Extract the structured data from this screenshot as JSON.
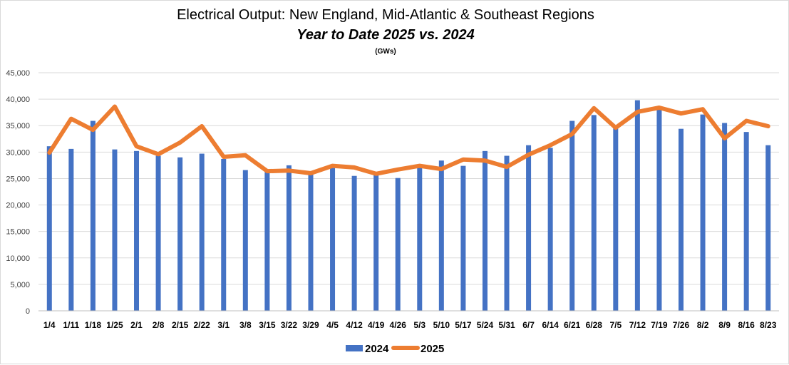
{
  "chart_data": {
    "type": "bar",
    "title": "Electrical Output:  New England, Mid-Atlantic & Southeast Regions",
    "subtitle": "Year to Date 2025 vs. 2024",
    "units": "(GWs)",
    "categories": [
      "1/4",
      "1/11",
      "1/18",
      "1/25",
      "2/1",
      "2/8",
      "2/15",
      "2/22",
      "3/1",
      "3/8",
      "3/15",
      "3/22",
      "3/29",
      "4/5",
      "4/12",
      "4/19",
      "4/26",
      "5/3",
      "5/10",
      "5/17",
      "5/24",
      "5/31",
      "6/7",
      "6/14",
      "6/21",
      "6/28",
      "7/5",
      "7/12",
      "7/19",
      "7/26",
      "8/2",
      "8/9",
      "8/16",
      "8/23"
    ],
    "series": [
      {
        "name": "2024",
        "type": "bar",
        "color": "#4472C4",
        "values": [
          31100,
          30600,
          35900,
          30500,
          30200,
          29300,
          29000,
          29700,
          28700,
          26600,
          26200,
          27500,
          25900,
          27000,
          25500,
          25800,
          25100,
          27300,
          28400,
          27400,
          30200,
          29300,
          31300,
          30800,
          35900,
          37000,
          34700,
          39800,
          38400,
          34400,
          37100,
          35500,
          33800,
          31300
        ]
      },
      {
        "name": "2025",
        "type": "line",
        "color": "#ED7D31",
        "values": [
          29900,
          36300,
          34200,
          38600,
          31100,
          29600,
          31800,
          34900,
          29100,
          29400,
          26400,
          26500,
          26000,
          27400,
          27100,
          25900,
          26700,
          27400,
          26800,
          28600,
          28400,
          27200,
          29500,
          31300,
          33400,
          38300,
          34600,
          37600,
          38400,
          37300,
          38100,
          32600,
          35900,
          34900
        ]
      }
    ],
    "ylim": [
      0,
      45000
    ],
    "yticks": [
      "0",
      "5,000",
      "10,000",
      "15,000",
      "20,000",
      "25,000",
      "30,000",
      "35,000",
      "40,000",
      "45,000"
    ],
    "grid": true,
    "legend_position": "bottom"
  }
}
